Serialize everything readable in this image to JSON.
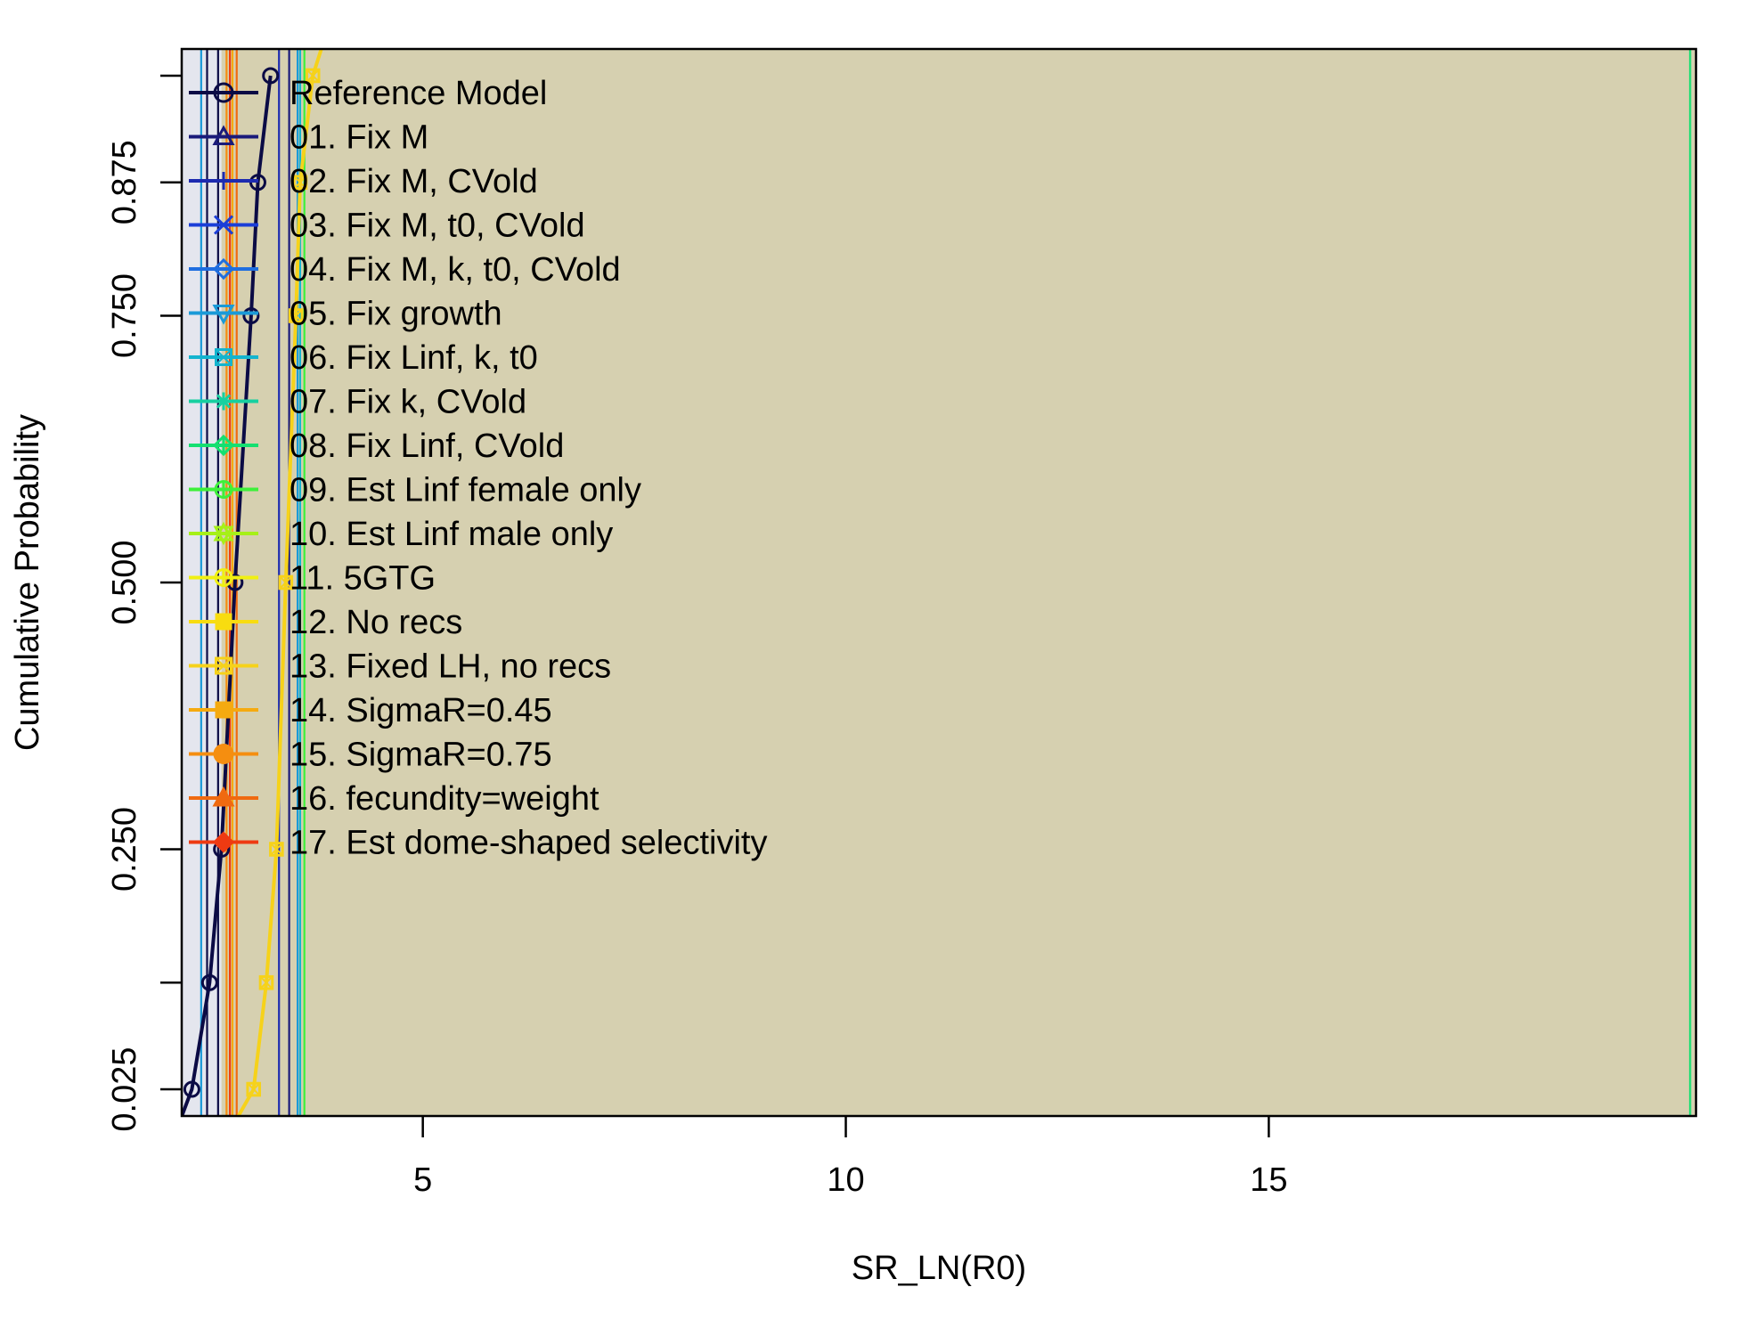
{
  "chart_data": {
    "type": "line",
    "title": "",
    "xlabel": "SR_LN(R0)",
    "ylabel": "Cumulative Probability",
    "xlim": [
      2.15,
      20.05
    ],
    "ylim": [
      0.0,
      1.0
    ],
    "x_ticks": [
      5,
      10,
      15
    ],
    "x_tick_labels": [
      "5",
      "10",
      "15"
    ],
    "y_ticks": [
      0.025,
      0.25,
      0.5,
      0.75,
      0.875
    ],
    "y_tick_labels": [
      "0.025",
      "0.250",
      "0.500",
      "0.750",
      "0.875"
    ],
    "y_minor_ticks": [
      0.125,
      0.975
    ],
    "grid": false,
    "legend_position": "top-left",
    "background_color": "#d6d0b0",
    "series": [
      {
        "name": "Reference Model",
        "color": "#0b0b45",
        "marker": "circle",
        "points": [
          [
            2.27,
            0.025
          ],
          [
            2.48,
            0.125
          ],
          [
            2.62,
            0.25
          ],
          [
            2.78,
            0.5
          ],
          [
            2.97,
            0.75
          ],
          [
            3.05,
            0.875
          ],
          [
            3.2,
            0.975
          ]
        ],
        "vlines": [
          2.45,
          2.58
        ]
      },
      {
        "name": "01. Fix M",
        "color": "#1a1a7a",
        "marker": "triangle",
        "points": [],
        "vlines": [
          3.42
        ]
      },
      {
        "name": "02. Fix M, CVold",
        "color": "#1d2bb0",
        "marker": "plus",
        "points": [],
        "vlines": [
          3.3
        ]
      },
      {
        "name": "03. Fix M, t0, CVold",
        "color": "#1b3ed8",
        "marker": "x",
        "points": [],
        "vlines": []
      },
      {
        "name": "04. Fix M, k, t0, CVold",
        "color": "#1f6ee0",
        "marker": "diamond",
        "points": [],
        "vlines": []
      },
      {
        "name": "05. Fix growth",
        "color": "#1a9ad8",
        "marker": "triangle-down",
        "points": [],
        "vlines": [
          2.38,
          3.52
        ]
      },
      {
        "name": "06. Fix Linf, k, t0",
        "color": "#14b4cf",
        "marker": "square-x",
        "points": [],
        "vlines": [
          3.55
        ]
      },
      {
        "name": "07. Fix k, CVold",
        "color": "#17d0a0",
        "marker": "asterisk",
        "points": [],
        "vlines": []
      },
      {
        "name": "08. Fix Linf, CVold",
        "color": "#14e070",
        "marker": "diamond-plus",
        "points": [],
        "vlines": [
          19.98
        ]
      },
      {
        "name": "09. Est Linf female only",
        "color": "#3ef03a",
        "marker": "circle-plus",
        "points": [],
        "vlines": [
          3.6
        ]
      },
      {
        "name": "10. Est Linf male only",
        "color": "#a6f018",
        "marker": "star",
        "points": [],
        "vlines": []
      },
      {
        "name": "11. 5GTG",
        "color": "#f0f012",
        "marker": "circle-plus",
        "points": [],
        "vlines": []
      },
      {
        "name": "12. No recs",
        "color": "#f8dc10",
        "marker": "square-filled",
        "points": [],
        "vlines": []
      },
      {
        "name": "13. Fixed LH, no recs",
        "color": "#f6d21a",
        "marker": "square-x",
        "points": [
          [
            2.82,
            0.0
          ],
          [
            3.0,
            0.025
          ],
          [
            3.15,
            0.125
          ],
          [
            3.27,
            0.25
          ],
          [
            3.38,
            0.5
          ],
          [
            3.5,
            0.75
          ],
          [
            3.55,
            0.875
          ],
          [
            3.7,
            0.975
          ],
          [
            3.8,
            1.0
          ]
        ],
        "vlines": []
      },
      {
        "name": "14. SigmaR=0.45",
        "color": "#f5aa10",
        "marker": "square-filled",
        "points": [],
        "vlines": [
          2.75
        ]
      },
      {
        "name": "15. SigmaR=0.75",
        "color": "#f58e10",
        "marker": "circle-filled",
        "points": [],
        "vlines": [
          2.68
        ]
      },
      {
        "name": "16. fecundity=weight",
        "color": "#f06a10",
        "marker": "triangle-filled",
        "points": [],
        "vlines": [
          2.8
        ]
      },
      {
        "name": "17. Est dome-shaped selectivity",
        "color": "#ee3a12",
        "marker": "diamond-filled",
        "points": [],
        "vlines": [
          2.72
        ]
      }
    ]
  }
}
